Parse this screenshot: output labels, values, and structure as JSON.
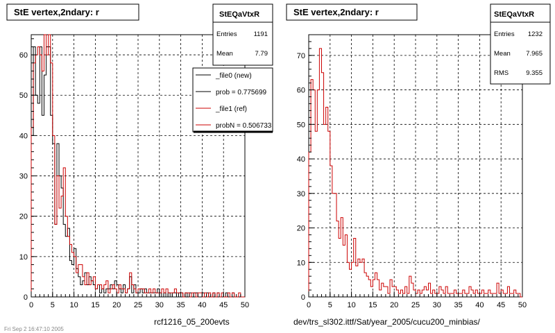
{
  "panels": [
    {
      "title": "StE  vertex,2ndary: r",
      "stats": {
        "name": "StEQaVtxR",
        "rows": [
          {
            "label": "Entries",
            "value": "1191"
          },
          {
            "label": "Mean",
            "value": "7.79"
          }
        ]
      },
      "caption": "rcf1216_05_200evts",
      "legend": [
        {
          "label": "_file0 (new)",
          "color": "#000000"
        },
        {
          "label": "prob = 0.775699",
          "color": "#000000"
        },
        {
          "label": "_file1 (ref)",
          "color": "#cc0000"
        },
        {
          "label": "probN = 0.506733",
          "color": "#cc0000"
        }
      ]
    },
    {
      "title": "StE  vertex,2ndary: r",
      "stats": {
        "name": "StEQaVtxR",
        "rows": [
          {
            "label": "Entries",
            "value": "1232"
          },
          {
            "label": "Mean",
            "value": "7.965"
          },
          {
            "label": "RMS",
            "value": "9.355"
          }
        ]
      },
      "caption": "dev/trs_sl302.ittf/Sat/year_2005/cucu200_minbias/",
      "legend": []
    }
  ],
  "bottom_left_text": "Fri Sep 2 16:47:10 2005",
  "chart_data": [
    {
      "type": "step",
      "title": "StE  vertex,2ndary: r",
      "xlim": [
        0,
        50
      ],
      "ylim": [
        0,
        65
      ],
      "xticks": [
        0,
        5,
        10,
        15,
        20,
        25,
        30,
        35,
        40,
        45,
        50
      ],
      "yticks": [
        0,
        10,
        20,
        30,
        40,
        50,
        60
      ],
      "grid": true,
      "bin_width": 0.5,
      "series": [
        {
          "name": "_file0 (new)",
          "color": "#000000",
          "values": [
            40,
            62,
            50,
            48,
            62,
            45,
            55,
            62,
            62,
            45,
            38,
            18,
            38,
            30,
            27,
            18,
            15,
            17,
            9,
            8,
            12,
            7,
            5,
            3,
            4,
            6,
            3,
            5,
            4,
            3,
            2,
            3,
            1,
            2,
            1,
            2,
            2,
            3,
            2,
            4,
            3,
            2,
            1,
            3,
            1,
            2,
            5,
            1,
            3,
            1,
            1,
            2,
            1,
            2,
            1,
            1,
            1,
            1,
            1,
            2,
            1,
            0,
            1,
            0,
            1,
            0,
            1,
            1,
            0,
            1,
            1,
            0,
            1,
            0,
            1,
            0,
            1,
            1,
            0,
            0,
            1,
            0,
            1,
            0,
            0,
            1,
            0,
            1,
            0,
            0,
            0,
            1,
            0,
            0,
            1,
            0,
            0,
            0,
            0,
            0
          ]
        },
        {
          "name": "_file1 (ref)",
          "color": "#cc0000",
          "values": [
            42,
            58,
            60,
            62,
            60,
            56,
            65,
            60,
            68,
            58,
            40,
            18,
            30,
            22,
            25,
            32,
            20,
            15,
            13,
            11,
            10,
            6,
            8,
            8,
            5,
            3,
            6,
            3,
            4,
            5,
            2,
            3,
            3,
            2,
            3,
            4,
            1,
            2,
            3,
            2,
            1,
            3,
            2,
            2,
            1,
            2,
            6,
            3,
            2,
            1,
            2,
            2,
            2,
            1,
            1,
            2,
            1,
            2,
            1,
            1,
            1,
            2,
            1,
            2,
            1,
            1,
            1,
            2,
            1,
            1,
            1,
            0,
            1,
            1,
            0,
            1,
            1,
            0,
            1,
            1,
            0,
            1,
            0,
            1,
            0,
            1,
            0,
            1,
            0,
            1,
            0,
            0,
            1,
            0,
            1,
            0,
            0,
            1,
            0,
            0
          ]
        }
      ]
    },
    {
      "type": "step",
      "title": "StE  vertex,2ndary: r",
      "xlim": [
        0,
        50
      ],
      "ylim": [
        0,
        76
      ],
      "xticks": [
        0,
        5,
        10,
        15,
        20,
        25,
        30,
        35,
        40,
        45,
        50
      ],
      "yticks": [
        0,
        10,
        20,
        30,
        40,
        50,
        60,
        70
      ],
      "grid": true,
      "bin_width": 0.5,
      "series": [
        {
          "name": "",
          "color": "#cc0000",
          "values": [
            42,
            63,
            60,
            48,
            60,
            72,
            65,
            50,
            55,
            48,
            38,
            30,
            30,
            22,
            17,
            23,
            15,
            18,
            10,
            8,
            10,
            17,
            9,
            11,
            10,
            11,
            7,
            6,
            5,
            3,
            5,
            7,
            5,
            2,
            4,
            3,
            3,
            1,
            5,
            3,
            3,
            2,
            1,
            2,
            1,
            3,
            1,
            6,
            4,
            2,
            1,
            2,
            1,
            2,
            3,
            2,
            4,
            1,
            2,
            1,
            1,
            3,
            2,
            1,
            3,
            1,
            1,
            1,
            2,
            1,
            1,
            1,
            2,
            1,
            1,
            3,
            2,
            1,
            2,
            1,
            1,
            2,
            1,
            1,
            2,
            1,
            1,
            1,
            4,
            1,
            2,
            1,
            1,
            3,
            1,
            1,
            2,
            1,
            1,
            0
          ]
        }
      ]
    }
  ]
}
